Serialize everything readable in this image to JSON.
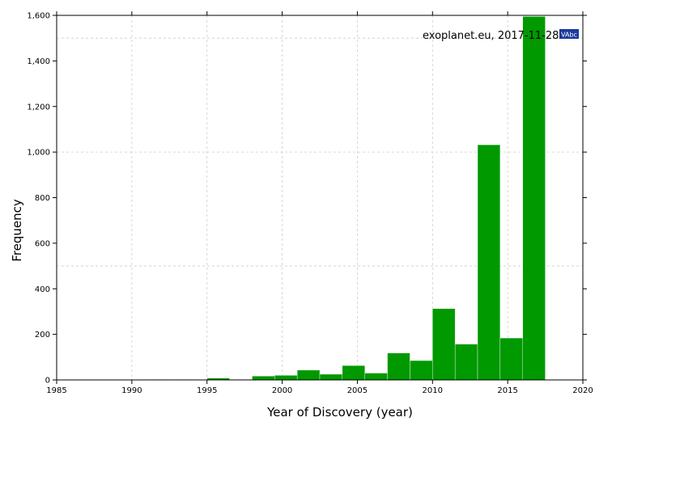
{
  "chart_data": {
    "type": "bar",
    "title": "",
    "xlabel": "Year of Discovery (year)",
    "ylabel": "Frequency",
    "annotation": "exoplanet.eu, 2017-11-28",
    "badge_label": "VAbc",
    "xlim": [
      1985,
      2020
    ],
    "ylim": [
      0,
      1600
    ],
    "x_ticks": [
      1985,
      1990,
      1995,
      2000,
      2005,
      2010,
      2015,
      2020
    ],
    "x_tick_labels": [
      "1985",
      "1990",
      "1995",
      "2000",
      "2005",
      "2010",
      "2015",
      "2020"
    ],
    "y_ticks": [
      0,
      200,
      400,
      600,
      800,
      1000,
      1200,
      1400,
      1600
    ],
    "y_tick_labels": [
      "0",
      "200",
      "400",
      "600",
      "800",
      "1,000",
      "1,200",
      "1,400",
      "1,600"
    ],
    "grid": true,
    "bin_edges": [
      1985,
      1986.5,
      1988,
      1989.5,
      1991,
      1992.5,
      1994,
      1995,
      1996.5,
      1998,
      1999.5,
      2001,
      2002.5,
      2004,
      2005.5,
      2007,
      2008.5,
      2010,
      2011.5,
      2013,
      2014.5,
      2016,
      2017.5
    ],
    "values": [
      1,
      1,
      1,
      1,
      2,
      2,
      1,
      8,
      2,
      17,
      20,
      43,
      25,
      63,
      30,
      118,
      85,
      313,
      157,
      1032,
      184,
      1595
    ],
    "bar_color": "#009900",
    "badge_color": "#1c3a9c"
  }
}
